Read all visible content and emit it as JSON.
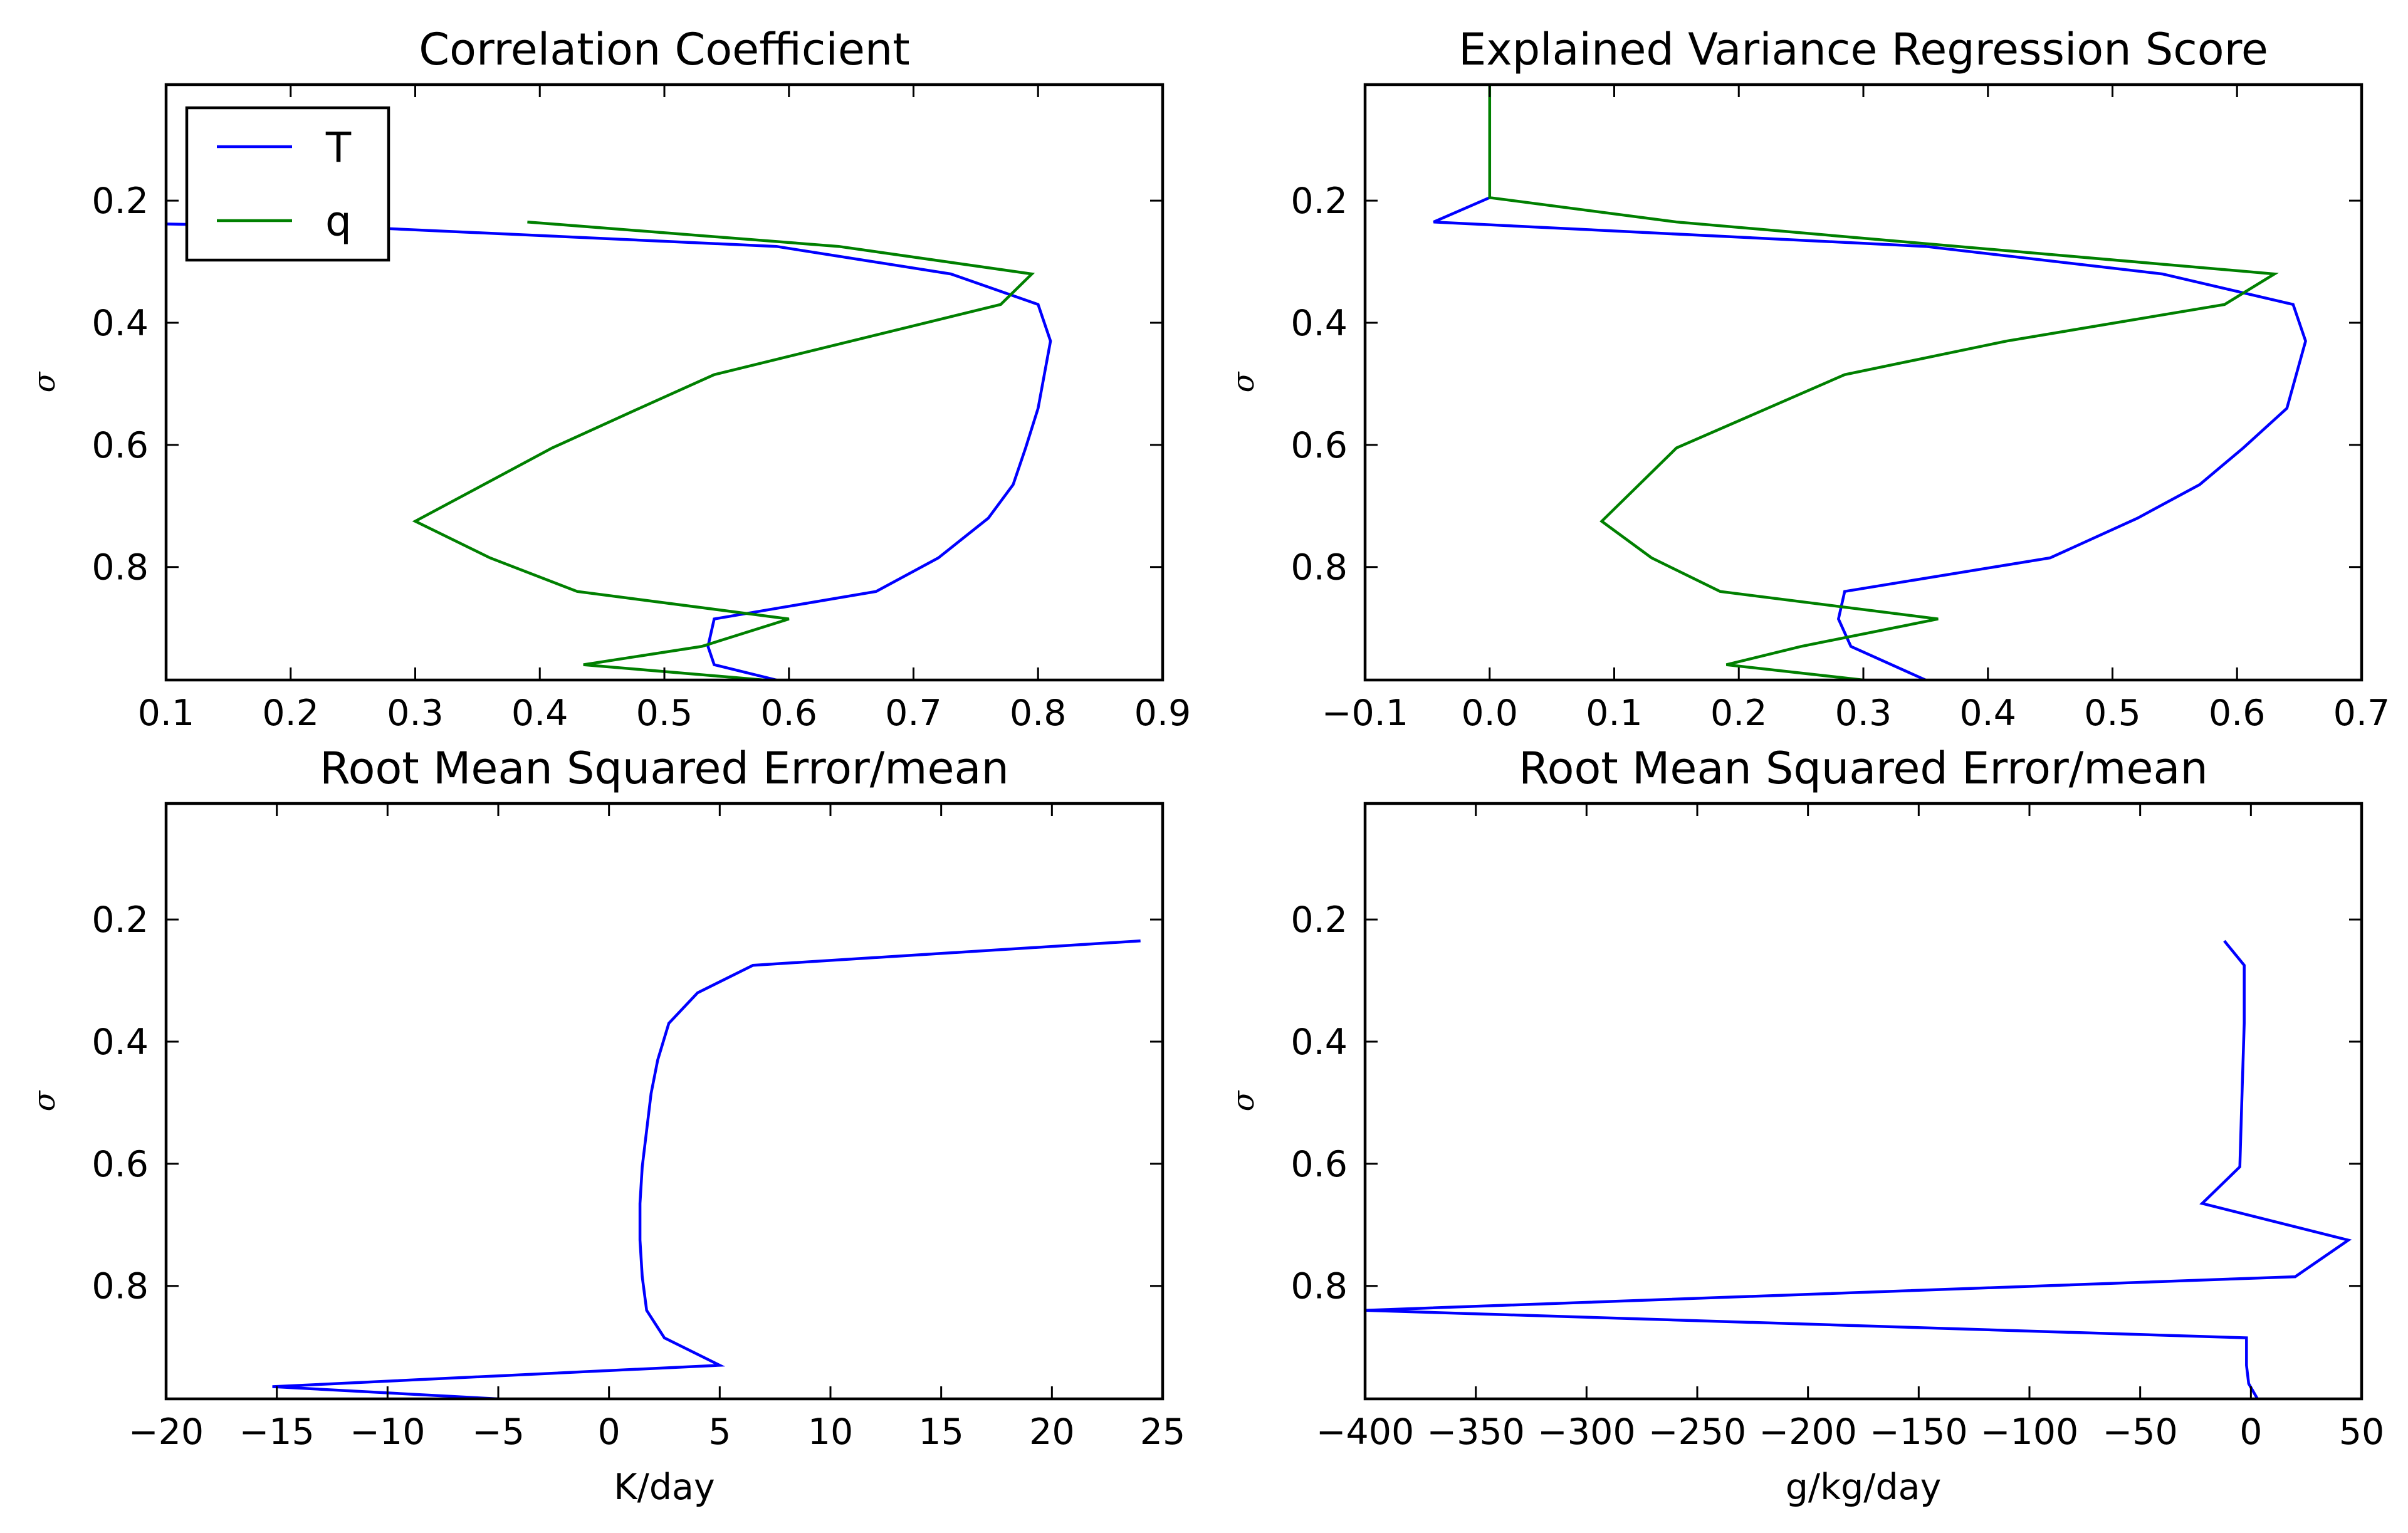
{
  "chart_data": [
    {
      "type": "line",
      "title": "Correlation Coefficient",
      "xlabel": "",
      "ylabel": "σ",
      "xlim": [
        0.1,
        0.9
      ],
      "ylim": [
        0.985,
        0.01
      ],
      "xticks": [
        "0.1",
        "0.2",
        "0.3",
        "0.4",
        "0.5",
        "0.6",
        "0.7",
        "0.8",
        "0.9"
      ],
      "yticks": [
        "0.2",
        "0.4",
        "0.6",
        "0.8"
      ],
      "legend": {
        "position": "top-left",
        "entries": [
          "T",
          "q"
        ]
      },
      "series": [
        {
          "name": "T",
          "color": "#0000ff",
          "x": [
            0.02,
            0.27,
            0.59,
            0.73,
            0.8,
            0.81,
            0.8,
            0.79,
            0.78,
            0.76,
            0.72,
            0.67,
            0.54,
            0.535,
            0.54,
            0.59
          ],
          "y": [
            0.235,
            0.245,
            0.275,
            0.32,
            0.37,
            0.43,
            0.54,
            0.605,
            0.665,
            0.72,
            0.785,
            0.84,
            0.885,
            0.93,
            0.96,
            0.985
          ]
        },
        {
          "name": "q",
          "color": "#008000",
          "x": [
            0.39,
            0.64,
            0.795,
            0.77,
            0.54,
            0.48,
            0.41,
            0.3,
            0.36,
            0.43,
            0.6,
            0.53,
            0.435,
            0.58
          ],
          "y": [
            0.235,
            0.275,
            0.32,
            0.37,
            0.485,
            0.54,
            0.605,
            0.725,
            0.785,
            0.84,
            0.885,
            0.93,
            0.96,
            0.985
          ]
        }
      ]
    },
    {
      "type": "line",
      "title": "Explained Variance Regression Score",
      "xlabel": "",
      "ylabel": "σ",
      "xlim": [
        -0.1,
        0.7
      ],
      "ylim": [
        0.985,
        0.01
      ],
      "xticks": [
        "−0.1",
        "0.0",
        "0.1",
        "0.2",
        "0.3",
        "0.4",
        "0.5",
        "0.6",
        "0.7"
      ],
      "yticks": [
        "0.2",
        "0.4",
        "0.6",
        "0.8"
      ],
      "series": [
        {
          "name": "T",
          "color": "#0000ff",
          "x": [
            0.0,
            -0.045,
            0.35,
            0.54,
            0.645,
            0.655,
            0.64,
            0.605,
            0.57,
            0.52,
            0.45,
            0.285,
            0.28,
            0.29,
            0.35
          ],
          "y": [
            0.195,
            0.235,
            0.275,
            0.32,
            0.37,
            0.43,
            0.54,
            0.605,
            0.665,
            0.72,
            0.785,
            0.84,
            0.885,
            0.93,
            0.985
          ]
        },
        {
          "name": "q",
          "color": "#008000",
          "x": [
            0.0,
            0.0,
            0.15,
            0.63,
            0.59,
            0.415,
            0.285,
            0.15,
            0.12,
            0.09,
            0.13,
            0.185,
            0.36,
            0.25,
            0.19,
            0.3
          ],
          "y": [
            0.01,
            0.195,
            0.235,
            0.32,
            0.37,
            0.43,
            0.485,
            0.605,
            0.665,
            0.725,
            0.785,
            0.84,
            0.885,
            0.93,
            0.96,
            0.985
          ]
        }
      ]
    },
    {
      "type": "line",
      "title": "Root Mean Squared Error/mean",
      "xlabel": "K/day",
      "ylabel": "σ",
      "xlim": [
        -20,
        25
      ],
      "ylim": [
        0.985,
        0.01
      ],
      "xticks": [
        "−20",
        "−15",
        "−10",
        "−5",
        "0",
        "5",
        "10",
        "15",
        "20",
        "25"
      ],
      "yticks": [
        "0.2",
        "0.4",
        "0.6",
        "0.8"
      ],
      "series": [
        {
          "name": "T",
          "color": "#0000ff",
          "x": [
            24,
            6.5,
            4,
            2.7,
            2.2,
            1.9,
            1.5,
            1.4,
            1.4,
            1.5,
            1.7,
            2.5,
            5,
            -15.2,
            -5
          ],
          "y": [
            0.235,
            0.275,
            0.32,
            0.37,
            0.43,
            0.485,
            0.605,
            0.665,
            0.725,
            0.785,
            0.84,
            0.885,
            0.93,
            0.965,
            0.985
          ]
        }
      ]
    },
    {
      "type": "line",
      "title": "Root Mean Squared Error/mean",
      "xlabel": "g/kg/day",
      "ylabel": "σ",
      "xlim": [
        -400,
        50
      ],
      "ylim": [
        0.985,
        0.01
      ],
      "xticks": [
        "−400",
        "−350",
        "−300",
        "−250",
        "−200",
        "−150",
        "−100",
        "−50",
        "0",
        "50"
      ],
      "yticks": [
        "0.2",
        "0.4",
        "0.6",
        "0.8"
      ],
      "series": [
        {
          "name": "q",
          "color": "#0000ff",
          "x": [
            -12,
            -3,
            -3,
            -3,
            -4,
            -5,
            -22,
            44,
            20,
            -400,
            -2,
            -2,
            -1,
            3
          ],
          "y": [
            0.235,
            0.275,
            0.32,
            0.37,
            0.485,
            0.605,
            0.665,
            0.725,
            0.785,
            0.84,
            0.885,
            0.93,
            0.96,
            0.985
          ]
        }
      ]
    }
  ]
}
